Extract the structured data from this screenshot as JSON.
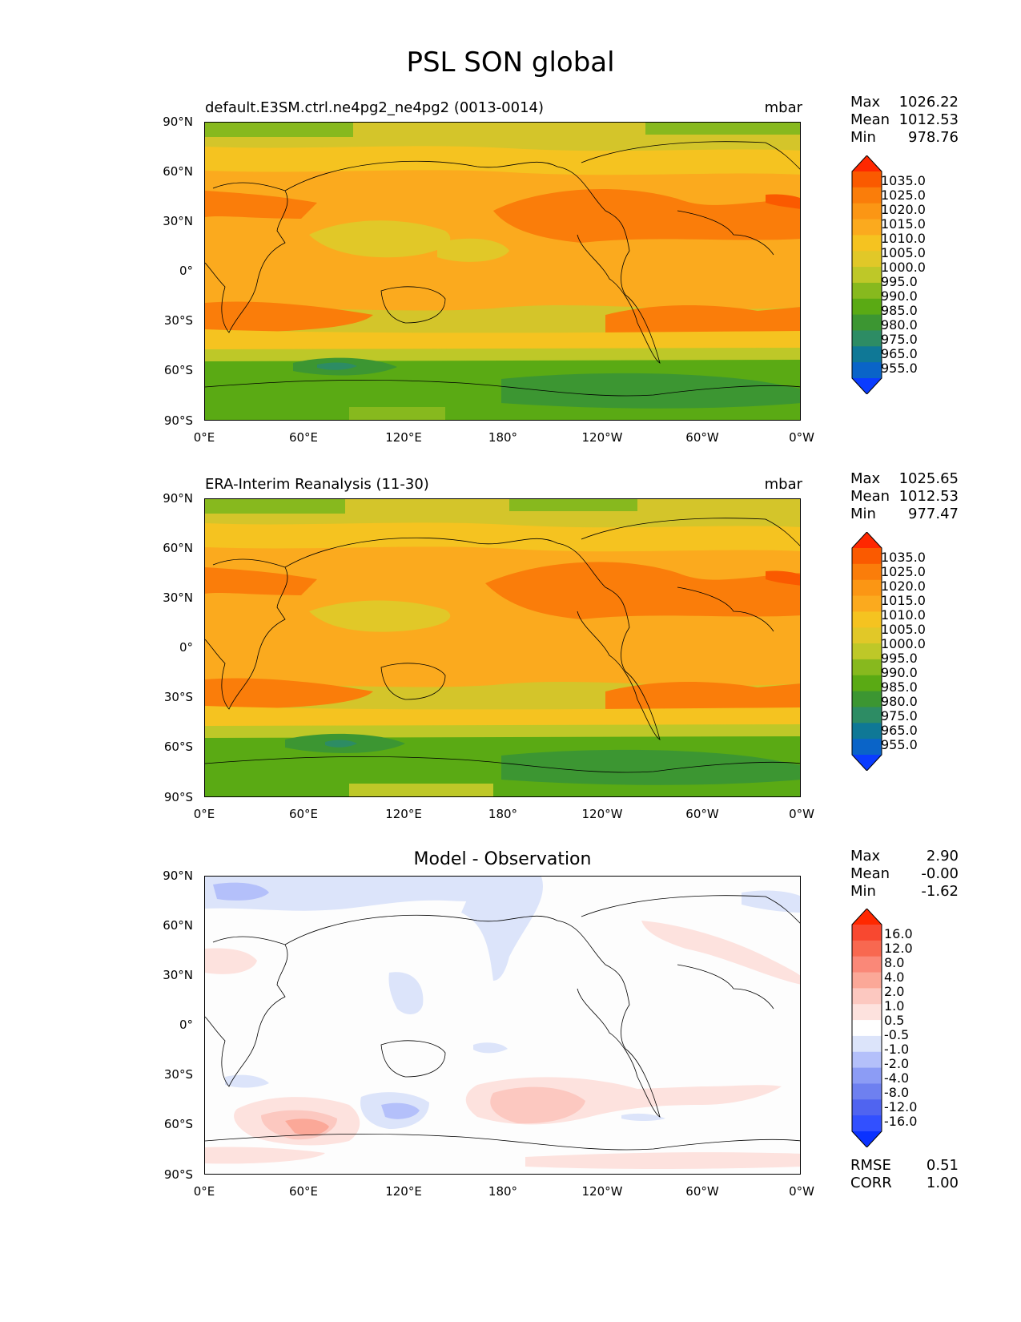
{
  "figure": {
    "title": "PSL SON global"
  },
  "panels": [
    {
      "title": "default.E3SM.ctrl.ne4pg2_ne4pg2 (0013-0014)",
      "units": "mbar",
      "stats": [
        [
          "Max",
          "1026.22"
        ],
        [
          "Mean",
          "1012.53"
        ],
        [
          "Min",
          "978.76"
        ]
      ],
      "colorbar": [
        "1035.0",
        "1025.0",
        "1020.0",
        "1015.0",
        "1010.0",
        "1005.0",
        "1000.0",
        "995.0",
        "990.0",
        "985.0",
        "980.0",
        "975.0",
        "965.0",
        "955.0"
      ]
    },
    {
      "title": "ERA-Interim Reanalysis (11-30)",
      "units": "mbar",
      "stats": [
        [
          "Max",
          "1025.65"
        ],
        [
          "Mean",
          "1012.53"
        ],
        [
          "Min",
          "977.47"
        ]
      ],
      "colorbar": [
        "1035.0",
        "1025.0",
        "1020.0",
        "1015.0",
        "1010.0",
        "1005.0",
        "1000.0",
        "995.0",
        "990.0",
        "985.0",
        "980.0",
        "975.0",
        "965.0",
        "955.0"
      ]
    },
    {
      "title": "Model - Observation",
      "units": "",
      "stats": [
        [
          "Max",
          "2.90"
        ],
        [
          "Mean",
          "-0.00"
        ],
        [
          "Min",
          "-1.62"
        ]
      ],
      "colorbar": [
        "16.0",
        "12.0",
        "8.0",
        "4.0",
        "2.0",
        "1.0",
        "0.5",
        "-0.5",
        "-1.0",
        "-2.0",
        "-4.0",
        "-8.0",
        "-12.0",
        "-16.0"
      ],
      "metrics": [
        [
          "RMSE",
          "0.51"
        ],
        [
          "CORR",
          "1.00"
        ]
      ]
    }
  ],
  "axes": {
    "lat_ticks": [
      "90°N",
      "60°N",
      "30°N",
      "0°",
      "30°S",
      "60°S",
      "90°S"
    ],
    "lon_ticks": [
      "0°E",
      "60°E",
      "120°E",
      "180°",
      "120°W",
      "60°W",
      "0°W"
    ]
  },
  "colors": {
    "abs_scale": [
      "#0a3cff",
      "#0a64c8",
      "#0f7896",
      "#2d8c64",
      "#3c9632",
      "#5aaa14",
      "#87b91e",
      "#bec828",
      "#e1c828",
      "#f5c320",
      "#fbaa1e",
      "#fb9614",
      "#fa7d0a",
      "#fa5a00",
      "#ff2800"
    ],
    "diff_scale": [
      "#0a32ff",
      "#3250ff",
      "#5064f0",
      "#6e80f0",
      "#8c9cf5",
      "#b4c0fa",
      "#dce4fa",
      "#ffffff",
      "#fde2de",
      "#fcc8c0",
      "#fba898",
      "#fa8878",
      "#f86850",
      "#f84830",
      "#ff2800"
    ]
  }
}
